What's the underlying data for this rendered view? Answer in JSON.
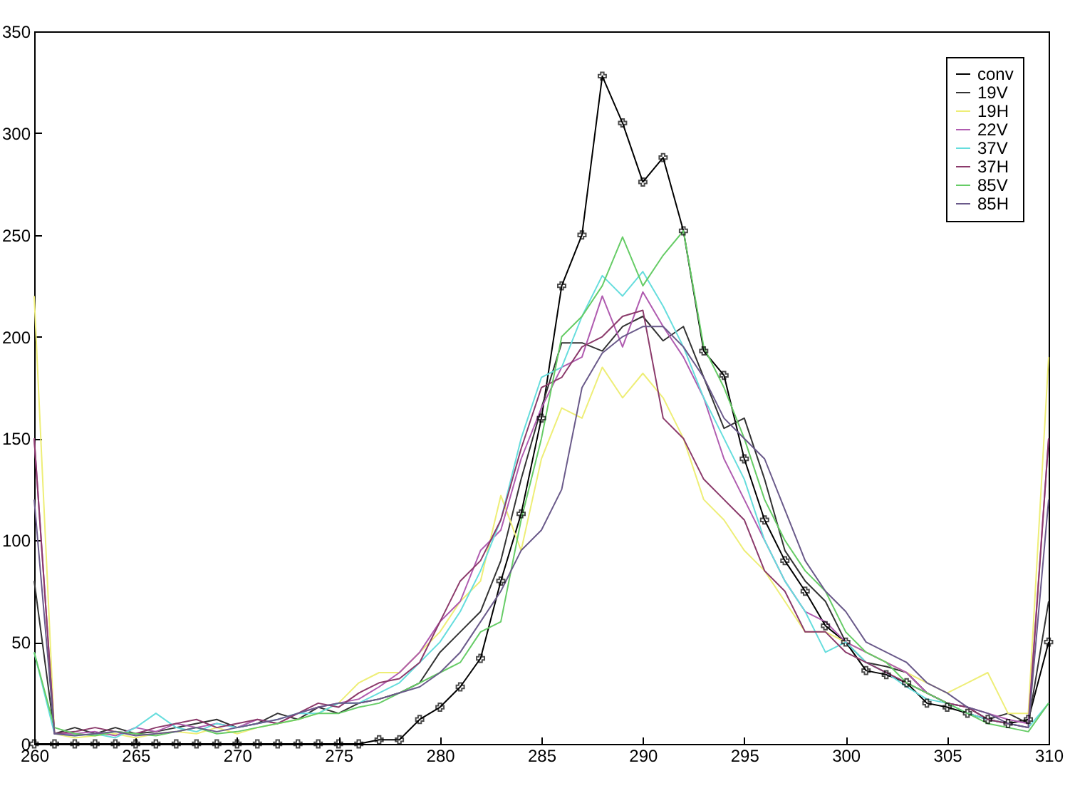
{
  "chart_data": {
    "type": "line",
    "x": [
      260,
      261,
      262,
      263,
      264,
      265,
      266,
      267,
      268,
      269,
      270,
      271,
      272,
      273,
      274,
      275,
      276,
      277,
      278,
      279,
      280,
      281,
      282,
      283,
      284,
      285,
      286,
      287,
      288,
      289,
      290,
      291,
      292,
      293,
      294,
      295,
      296,
      297,
      298,
      299,
      300,
      301,
      302,
      303,
      304,
      305,
      306,
      307,
      308,
      309,
      310
    ],
    "xlim": [
      260,
      310
    ],
    "xticks": [
      260,
      265,
      270,
      275,
      280,
      285,
      290,
      295,
      300,
      305,
      310
    ],
    "ylim": [
      0,
      350
    ],
    "yticks": [
      0,
      50,
      100,
      150,
      200,
      250,
      300,
      350
    ],
    "legend": "top right",
    "line_style": "solid",
    "series": [
      {
        "name": "conv",
        "color": "#000000",
        "marker": "cross",
        "values": [
          0,
          0,
          0,
          0,
          0,
          0,
          0,
          0,
          0,
          0,
          0,
          0,
          0,
          0,
          0,
          0,
          0,
          2,
          2,
          12,
          18,
          28,
          42,
          80,
          113,
          160,
          225,
          250,
          328,
          305,
          276,
          288,
          252,
          193,
          181,
          140,
          110,
          90,
          75,
          58,
          50,
          36,
          34,
          30,
          20,
          18,
          15,
          12,
          10,
          12,
          50
        ]
      },
      {
        "name": "19V",
        "color": "#333333",
        "values": [
          80,
          5,
          8,
          5,
          8,
          5,
          6,
          8,
          10,
          12,
          8,
          10,
          15,
          12,
          18,
          15,
          20,
          22,
          25,
          30,
          45,
          55,
          65,
          90,
          130,
          165,
          197,
          197,
          193,
          205,
          210,
          198,
          205,
          180,
          155,
          160,
          130,
          95,
          80,
          70,
          50,
          40,
          38,
          35,
          25,
          20,
          18,
          12,
          15,
          10,
          70
        ]
      },
      {
        "name": "19H",
        "color": "#eeee77",
        "values": [
          220,
          5,
          3,
          4,
          5,
          3,
          5,
          6,
          5,
          8,
          5,
          8,
          10,
          12,
          15,
          20,
          30,
          35,
          35,
          45,
          55,
          70,
          80,
          122,
          95,
          140,
          165,
          160,
          185,
          170,
          182,
          170,
          150,
          120,
          110,
          95,
          85,
          70,
          55,
          55,
          50,
          45,
          40,
          35,
          30,
          25,
          30,
          35,
          15,
          15,
          190
        ]
      },
      {
        "name": "22V",
        "color": "#b05cb0",
        "values": [
          150,
          5,
          5,
          6,
          4,
          8,
          6,
          10,
          8,
          10,
          8,
          12,
          10,
          15,
          18,
          20,
          22,
          28,
          35,
          45,
          60,
          70,
          95,
          105,
          140,
          165,
          185,
          190,
          220,
          195,
          222,
          205,
          190,
          170,
          140,
          120,
          100,
          80,
          65,
          60,
          50,
          45,
          40,
          35,
          25,
          20,
          18,
          15,
          12,
          10,
          150
        ]
      },
      {
        "name": "37V",
        "color": "#66dddd",
        "values": [
          45,
          5,
          4,
          5,
          3,
          8,
          15,
          8,
          6,
          10,
          8,
          10,
          12,
          15,
          15,
          20,
          20,
          25,
          30,
          40,
          50,
          65,
          85,
          110,
          150,
          180,
          185,
          210,
          230,
          220,
          232,
          215,
          195,
          170,
          150,
          130,
          100,
          80,
          65,
          45,
          50,
          40,
          35,
          28,
          22,
          20,
          15,
          12,
          10,
          8,
          20
        ]
      },
      {
        "name": "37H",
        "color": "#8b3a6b",
        "values": [
          150,
          5,
          6,
          8,
          6,
          5,
          8,
          10,
          12,
          8,
          10,
          12,
          10,
          15,
          20,
          18,
          25,
          30,
          32,
          40,
          60,
          80,
          90,
          110,
          145,
          175,
          180,
          195,
          200,
          210,
          213,
          160,
          150,
          130,
          120,
          110,
          85,
          75,
          55,
          55,
          45,
          40,
          35,
          30,
          25,
          20,
          18,
          12,
          10,
          8,
          150
        ]
      },
      {
        "name": "85V",
        "color": "#66cc66",
        "values": [
          45,
          8,
          5,
          4,
          6,
          5,
          4,
          6,
          8,
          5,
          6,
          8,
          10,
          12,
          15,
          15,
          18,
          20,
          25,
          30,
          35,
          40,
          55,
          60,
          110,
          150,
          200,
          210,
          225,
          249,
          225,
          240,
          252,
          195,
          175,
          150,
          120,
          100,
          85,
          75,
          55,
          45,
          40,
          30,
          25,
          20,
          15,
          10,
          8,
          6,
          20
        ]
      },
      {
        "name": "85H",
        "color": "#6a5a8a",
        "values": [
          120,
          5,
          4,
          5,
          6,
          4,
          5,
          6,
          8,
          6,
          8,
          10,
          12,
          15,
          18,
          20,
          20,
          22,
          25,
          28,
          35,
          45,
          60,
          75,
          95,
          105,
          125,
          175,
          192,
          200,
          205,
          205,
          195,
          180,
          160,
          150,
          140,
          115,
          90,
          75,
          65,
          50,
          45,
          40,
          30,
          25,
          18,
          15,
          10,
          8,
          120
        ]
      }
    ]
  }
}
